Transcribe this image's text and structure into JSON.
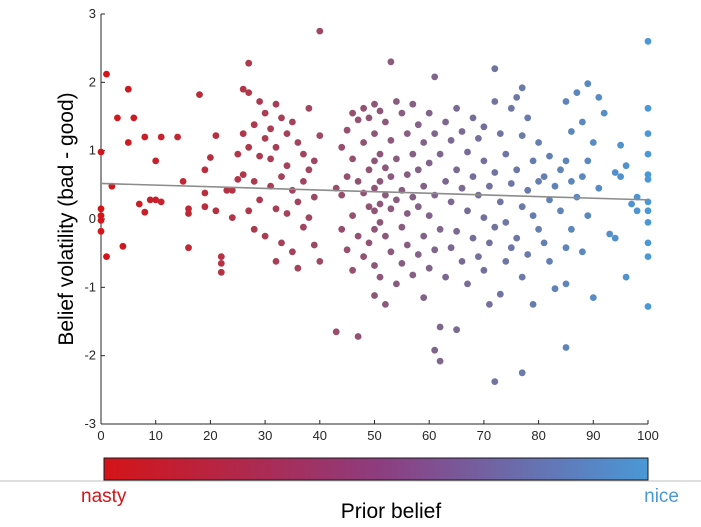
{
  "chart_data": {
    "type": "scatter",
    "title": "",
    "xlabel": "",
    "ylabel": "Belief volatility (bad - good)",
    "xlim": [
      0,
      100
    ],
    "ylim": [
      -3,
      3
    ],
    "xticks": [
      "0",
      "10",
      "20",
      "30",
      "40",
      "50",
      "60",
      "70",
      "80",
      "90",
      "100"
    ],
    "yticks": [
      "-3",
      "-2",
      "-1",
      "0",
      "1",
      "2",
      "3"
    ],
    "grid": false,
    "trend_line": {
      "x": [
        0,
        100
      ],
      "y": [
        0.52,
        0.28
      ],
      "color": "#8c8c8c"
    },
    "colormap": {
      "low_color": "#d41418",
      "high_color": "#4a98d6",
      "low_label": "nasty",
      "high_label": "nice",
      "label": "Prior belief"
    },
    "series": [
      {
        "points": [
          [
            0,
            0.98
          ],
          [
            0,
            0.15
          ],
          [
            0,
            0.05
          ],
          [
            0,
            -0.02
          ],
          [
            0,
            -0.18
          ],
          [
            1,
            2.12
          ],
          [
            1,
            -0.55
          ],
          [
            2,
            0.48
          ],
          [
            3,
            1.48
          ],
          [
            4,
            -0.4
          ],
          [
            5,
            1.9
          ],
          [
            5,
            1.12
          ],
          [
            6,
            1.48
          ],
          [
            7,
            0.22
          ],
          [
            8,
            1.2
          ],
          [
            8,
            0.1
          ],
          [
            9,
            0.28
          ],
          [
            10,
            0.85
          ],
          [
            10,
            0.28
          ],
          [
            11,
            1.2
          ],
          [
            11,
            0.25
          ],
          [
            14,
            1.2
          ],
          [
            15,
            0.55
          ],
          [
            16,
            0.15
          ],
          [
            16,
            0.08
          ],
          [
            16,
            -0.42
          ],
          [
            18,
            1.82
          ],
          [
            19,
            0.72
          ],
          [
            19,
            0.38
          ],
          [
            19,
            0.18
          ],
          [
            20,
            0.9
          ],
          [
            21,
            1.22
          ],
          [
            21,
            0.12
          ],
          [
            22,
            -0.55
          ],
          [
            22,
            -0.65
          ],
          [
            22,
            -0.78
          ],
          [
            23,
            0.42
          ],
          [
            24,
            0.42
          ],
          [
            24,
            0.02
          ],
          [
            25,
            0.95
          ],
          [
            25,
            0.58
          ],
          [
            26,
            1.9
          ],
          [
            26,
            1.25
          ],
          [
            26,
            0.65
          ],
          [
            27,
            2.28
          ],
          [
            27,
            1.85
          ],
          [
            27,
            1.05
          ],
          [
            27,
            0.12
          ],
          [
            28,
            1.38
          ],
          [
            28,
            0.55
          ],
          [
            28,
            -0.15
          ],
          [
            29,
            1.72
          ],
          [
            29,
            0.92
          ],
          [
            29,
            0.28
          ],
          [
            30,
            1.55
          ],
          [
            30,
            1.18
          ],
          [
            30,
            -0.25
          ],
          [
            31,
            1.32
          ],
          [
            31,
            0.88
          ],
          [
            31,
            0.48
          ],
          [
            32,
            1.68
          ],
          [
            32,
            1.05
          ],
          [
            32,
            0.15
          ],
          [
            32,
            -0.62
          ],
          [
            33,
            1.48
          ],
          [
            33,
            0.62
          ],
          [
            33,
            -0.35
          ],
          [
            34,
            1.25
          ],
          [
            34,
            0.78
          ],
          [
            34,
            0.08
          ],
          [
            35,
            1.42
          ],
          [
            35,
            0.42
          ],
          [
            35,
            -0.48
          ],
          [
            36,
            1.12
          ],
          [
            36,
            0.25
          ],
          [
            36,
            -0.72
          ],
          [
            37,
            0.95
          ],
          [
            37,
            0.55
          ],
          [
            37,
            -0.12
          ],
          [
            38,
            1.62
          ],
          [
            38,
            0.72
          ],
          [
            38,
            0.02
          ],
          [
            39,
            0.85
          ],
          [
            39,
            0.32
          ],
          [
            39,
            -0.38
          ],
          [
            40,
            2.75
          ],
          [
            40,
            1.22
          ],
          [
            40,
            -0.62
          ],
          [
            43,
            0.45
          ],
          [
            43,
            -1.65
          ],
          [
            44,
            1.05
          ],
          [
            44,
            0.35
          ],
          [
            44,
            -0.15
          ],
          [
            45,
            1.3
          ],
          [
            45,
            0.62
          ],
          [
            45,
            -0.45
          ],
          [
            46,
            1.55
          ],
          [
            46,
            0.88
          ],
          [
            46,
            0.05
          ],
          [
            46,
            -0.75
          ],
          [
            47,
            1.45
          ],
          [
            47,
            0.55
          ],
          [
            47,
            -0.25
          ],
          [
            47,
            -1.72
          ],
          [
            48,
            1.62
          ],
          [
            48,
            1.12
          ],
          [
            48,
            0.38
          ],
          [
            48,
            -0.55
          ],
          [
            49,
            1.48
          ],
          [
            49,
            0.72
          ],
          [
            49,
            0.18
          ],
          [
            49,
            -0.35
          ],
          [
            50,
            1.68
          ],
          [
            50,
            1.25
          ],
          [
            50,
            0.85
          ],
          [
            50,
            0.45
          ],
          [
            50,
            0.12
          ],
          [
            50,
            -0.15
          ],
          [
            50,
            -0.68
          ],
          [
            50,
            -1.12
          ],
          [
            51,
            1.58
          ],
          [
            51,
            0.95
          ],
          [
            51,
            0.55
          ],
          [
            51,
            0.22
          ],
          [
            51,
            -0.05
          ],
          [
            51,
            -0.85
          ],
          [
            52,
            1.42
          ],
          [
            52,
            0.75
          ],
          [
            52,
            0.35
          ],
          [
            52,
            -0.25
          ],
          [
            52,
            -1.25
          ],
          [
            53,
            2.3
          ],
          [
            53,
            1.15
          ],
          [
            53,
            0.62
          ],
          [
            53,
            0.15
          ],
          [
            53,
            -0.48
          ],
          [
            54,
            1.72
          ],
          [
            54,
            0.88
          ],
          [
            54,
            0.28
          ],
          [
            54,
            -0.95
          ],
          [
            55,
            1.55
          ],
          [
            55,
            0.42
          ],
          [
            55,
            -0.12
          ],
          [
            55,
            -0.65
          ],
          [
            56,
            1.25
          ],
          [
            56,
            0.65
          ],
          [
            56,
            0.08
          ],
          [
            56,
            -0.38
          ],
          [
            57,
            1.68
          ],
          [
            57,
            0.95
          ],
          [
            57,
            0.32
          ],
          [
            57,
            -0.82
          ],
          [
            58,
            1.38
          ],
          [
            58,
            0.72
          ],
          [
            58,
            0.18
          ],
          [
            58,
            -0.52
          ],
          [
            59,
            1.12
          ],
          [
            59,
            0.48
          ],
          [
            59,
            -0.25
          ],
          [
            59,
            -1.15
          ],
          [
            60,
            1.55
          ],
          [
            60,
            0.82
          ],
          [
            60,
            0.05
          ],
          [
            60,
            -0.72
          ],
          [
            61,
            2.08
          ],
          [
            61,
            1.25
          ],
          [
            61,
            0.35
          ],
          [
            61,
            -0.45
          ],
          [
            61,
            -1.92
          ],
          [
            62,
            0.95
          ],
          [
            62,
            -0.15
          ],
          [
            62,
            -1.58
          ],
          [
            62,
            -2.08
          ],
          [
            63,
            1.42
          ],
          [
            63,
            0.55
          ],
          [
            63,
            -0.85
          ],
          [
            64,
            1.15
          ],
          [
            64,
            0.25
          ],
          [
            64,
            -0.42
          ],
          [
            65,
            1.62
          ],
          [
            65,
            0.72
          ],
          [
            65,
            -0.18
          ],
          [
            65,
            -1.62
          ],
          [
            66,
            1.28
          ],
          [
            66,
            0.45
          ],
          [
            66,
            -0.62
          ],
          [
            67,
            0.98
          ],
          [
            67,
            0.12
          ],
          [
            67,
            -0.95
          ],
          [
            68,
            1.48
          ],
          [
            68,
            0.62
          ],
          [
            68,
            -0.28
          ],
          [
            69,
            1.18
          ],
          [
            69,
            0.35
          ],
          [
            69,
            -0.55
          ],
          [
            70,
            1.35
          ],
          [
            70,
            0.85
          ],
          [
            70,
            0.02
          ],
          [
            70,
            -0.75
          ],
          [
            71,
            0.48
          ],
          [
            71,
            -0.35
          ],
          [
            71,
            -1.25
          ],
          [
            72,
            2.2
          ],
          [
            72,
            1.72
          ],
          [
            72,
            0.68
          ],
          [
            72,
            -0.12
          ],
          [
            72,
            -2.38
          ],
          [
            73,
            1.25
          ],
          [
            73,
            0.25
          ],
          [
            73,
            -1.1
          ],
          [
            74,
            0.95
          ],
          [
            74,
            -0.05
          ],
          [
            74,
            -0.62
          ],
          [
            75,
            1.62
          ],
          [
            75,
            0.52
          ],
          [
            75,
            -0.42
          ],
          [
            76,
            1.78
          ],
          [
            76,
            0.72
          ],
          [
            76,
            -0.28
          ],
          [
            77,
            1.92
          ],
          [
            77,
            1.22
          ],
          [
            77,
            0.18
          ],
          [
            77,
            -0.85
          ],
          [
            77,
            -2.25
          ],
          [
            78,
            1.48
          ],
          [
            78,
            0.42
          ],
          [
            78,
            -0.52
          ],
          [
            79,
            0.85
          ],
          [
            79,
            0.05
          ],
          [
            79,
            -1.25
          ],
          [
            80,
            1.12
          ],
          [
            80,
            0.55
          ],
          [
            80,
            -0.15
          ],
          [
            81,
            0.62
          ],
          [
            81,
            -0.35
          ],
          [
            82,
            0.92
          ],
          [
            82,
            0.28
          ],
          [
            82,
            -0.62
          ],
          [
            83,
            0.48
          ],
          [
            83,
            -1.02
          ],
          [
            84,
            0.72
          ],
          [
            84,
            0.12
          ],
          [
            85,
            1.72
          ],
          [
            85,
            0.85
          ],
          [
            85,
            -0.42
          ],
          [
            85,
            -0.95
          ],
          [
            85,
            -1.88
          ],
          [
            86,
            1.28
          ],
          [
            86,
            0.55
          ],
          [
            86,
            -0.15
          ],
          [
            87,
            1.85
          ],
          [
            87,
            0.32
          ],
          [
            88,
            1.42
          ],
          [
            88,
            0.62
          ],
          [
            88,
            -0.48
          ],
          [
            89,
            1.98
          ],
          [
            89,
            0.85
          ],
          [
            89,
            0.05
          ],
          [
            90,
            1.12
          ],
          [
            90,
            -1.15
          ],
          [
            91,
            1.78
          ],
          [
            91,
            0.45
          ],
          [
            92,
            1.55
          ],
          [
            93,
            -0.22
          ],
          [
            94,
            0.68
          ],
          [
            94,
            -0.28
          ],
          [
            95,
            1.08
          ],
          [
            95,
            0.62
          ],
          [
            96,
            0.78
          ],
          [
            96,
            -0.85
          ],
          [
            97,
            0.22
          ],
          [
            98,
            0.12
          ],
          [
            98,
            0.32
          ],
          [
            100,
            2.6
          ],
          [
            100,
            1.62
          ],
          [
            100,
            1.25
          ],
          [
            100,
            0.95
          ],
          [
            100,
            0.65
          ],
          [
            100,
            0.58
          ],
          [
            100,
            0.25
          ],
          [
            100,
            0.12
          ],
          [
            100,
            -0.05
          ],
          [
            100,
            -0.35
          ],
          [
            100,
            -0.55
          ],
          [
            100,
            -1.28
          ]
        ]
      }
    ]
  }
}
